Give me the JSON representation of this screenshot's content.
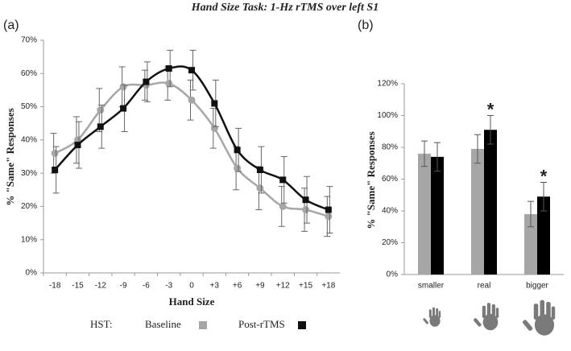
{
  "title": "Hand Size Task: 1-Hz rTMS over left S1",
  "chart_data": [
    {
      "type": "line",
      "panel": "(a)",
      "x_label": "Hand Size",
      "y_label": "% \"Same\" Responses",
      "legend_title": "HST:",
      "categories": [
        "-18",
        "-15",
        "-12",
        "-9",
        "-6",
        "-3",
        "0",
        "+3",
        "+6",
        "+9",
        "+12",
        "+15",
        "+18"
      ],
      "ylim": [
        0,
        70
      ],
      "yticks": [
        {
          "value": 0,
          "label": "0%"
        },
        {
          "value": 10,
          "label": "10%"
        },
        {
          "value": 20,
          "label": "20%"
        },
        {
          "value": 30,
          "label": "30%"
        },
        {
          "value": 40,
          "label": "40%"
        },
        {
          "value": 50,
          "label": "50%"
        },
        {
          "value": 60,
          "label": "60%"
        },
        {
          "value": 70,
          "label": "70%"
        }
      ],
      "series": [
        {
          "name": "Baseline",
          "color": "#a6a6a6",
          "marker": "circle",
          "values": [
            36,
            40,
            49,
            56,
            56.5,
            57,
            52,
            43.5,
            31.5,
            25.5,
            20,
            19,
            17
          ],
          "errors": [
            6,
            7,
            6.5,
            6,
            4.5,
            5,
            6,
            6,
            6.5,
            6.5,
            6,
            6.5,
            6
          ]
        },
        {
          "name": "Post-rTMS",
          "color": "#111111",
          "marker": "square",
          "values": [
            31,
            38.5,
            44,
            49.5,
            57.5,
            61.5,
            61,
            51,
            37,
            31,
            28,
            22,
            19
          ],
          "errors": [
            7,
            7,
            6.5,
            7,
            6,
            5.5,
            6,
            7,
            6.5,
            7,
            7,
            7,
            7
          ]
        }
      ]
    },
    {
      "type": "bar",
      "panel": "(b)",
      "y_label": "% \"Same\" Responses",
      "categories": [
        "smaller",
        "real",
        "bigger"
      ],
      "ylim": [
        0,
        120
      ],
      "yticks": [
        {
          "value": 0,
          "label": "0%"
        },
        {
          "value": 20,
          "label": "20%"
        },
        {
          "value": 40,
          "label": "40%"
        },
        {
          "value": 60,
          "label": "60%"
        },
        {
          "value": 80,
          "label": "80%"
        },
        {
          "value": 100,
          "label": "100%"
        },
        {
          "value": 120,
          "label": "120%"
        }
      ],
      "series": [
        {
          "name": "Baseline",
          "color": "#a6a6a6",
          "values": [
            76,
            79,
            38
          ],
          "errors": [
            8,
            9,
            8
          ]
        },
        {
          "name": "Post-rTMS",
          "color": "#000000",
          "values": [
            74,
            91,
            49
          ],
          "errors": [
            9,
            9,
            9
          ]
        }
      ],
      "annotations": [
        {
          "text": "*",
          "category": "real"
        },
        {
          "text": "*",
          "category": "bigger"
        }
      ]
    }
  ]
}
